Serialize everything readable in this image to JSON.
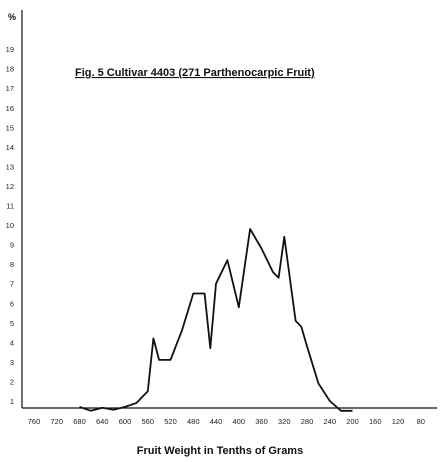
{
  "chart_data": {
    "type": "line",
    "title": "Fig. 5   Cultivar 4403 (271 Parthenocarpic Fruit)",
    "xlabel": "Fruit Weight in Tenths of Grams",
    "ylabel": "%",
    "xlim": [
      760,
      80
    ],
    "ylim": [
      0.5,
      20
    ],
    "x_ticks": [
      760,
      720,
      680,
      640,
      600,
      560,
      520,
      480,
      440,
      400,
      360,
      320,
      280,
      240,
      200,
      160,
      120,
      80
    ],
    "y_ticks": [
      1,
      2,
      3,
      4,
      5,
      6,
      7,
      8,
      9,
      10,
      11,
      12,
      13,
      14,
      15,
      16,
      17,
      18,
      19
    ],
    "grid": false,
    "legend": "none",
    "series": [
      {
        "color": "#111111",
        "x": [
          680,
          660,
          640,
          620,
          600,
          580,
          560,
          550,
          540,
          520,
          500,
          480,
          460,
          450,
          440,
          420,
          400,
          380,
          360,
          340,
          330,
          320,
          300,
          290,
          280,
          260,
          240,
          220,
          200
        ],
        "y": [
          0.7,
          0.5,
          0.65,
          0.55,
          0.7,
          0.9,
          1.5,
          4.2,
          3.1,
          3.1,
          4.6,
          6.5,
          6.5,
          3.7,
          7.0,
          8.2,
          5.8,
          9.8,
          8.8,
          7.6,
          7.3,
          9.4,
          5.1,
          4.8,
          3.8,
          1.9,
          1.0,
          0.5,
          0.5
        ]
      }
    ]
  }
}
